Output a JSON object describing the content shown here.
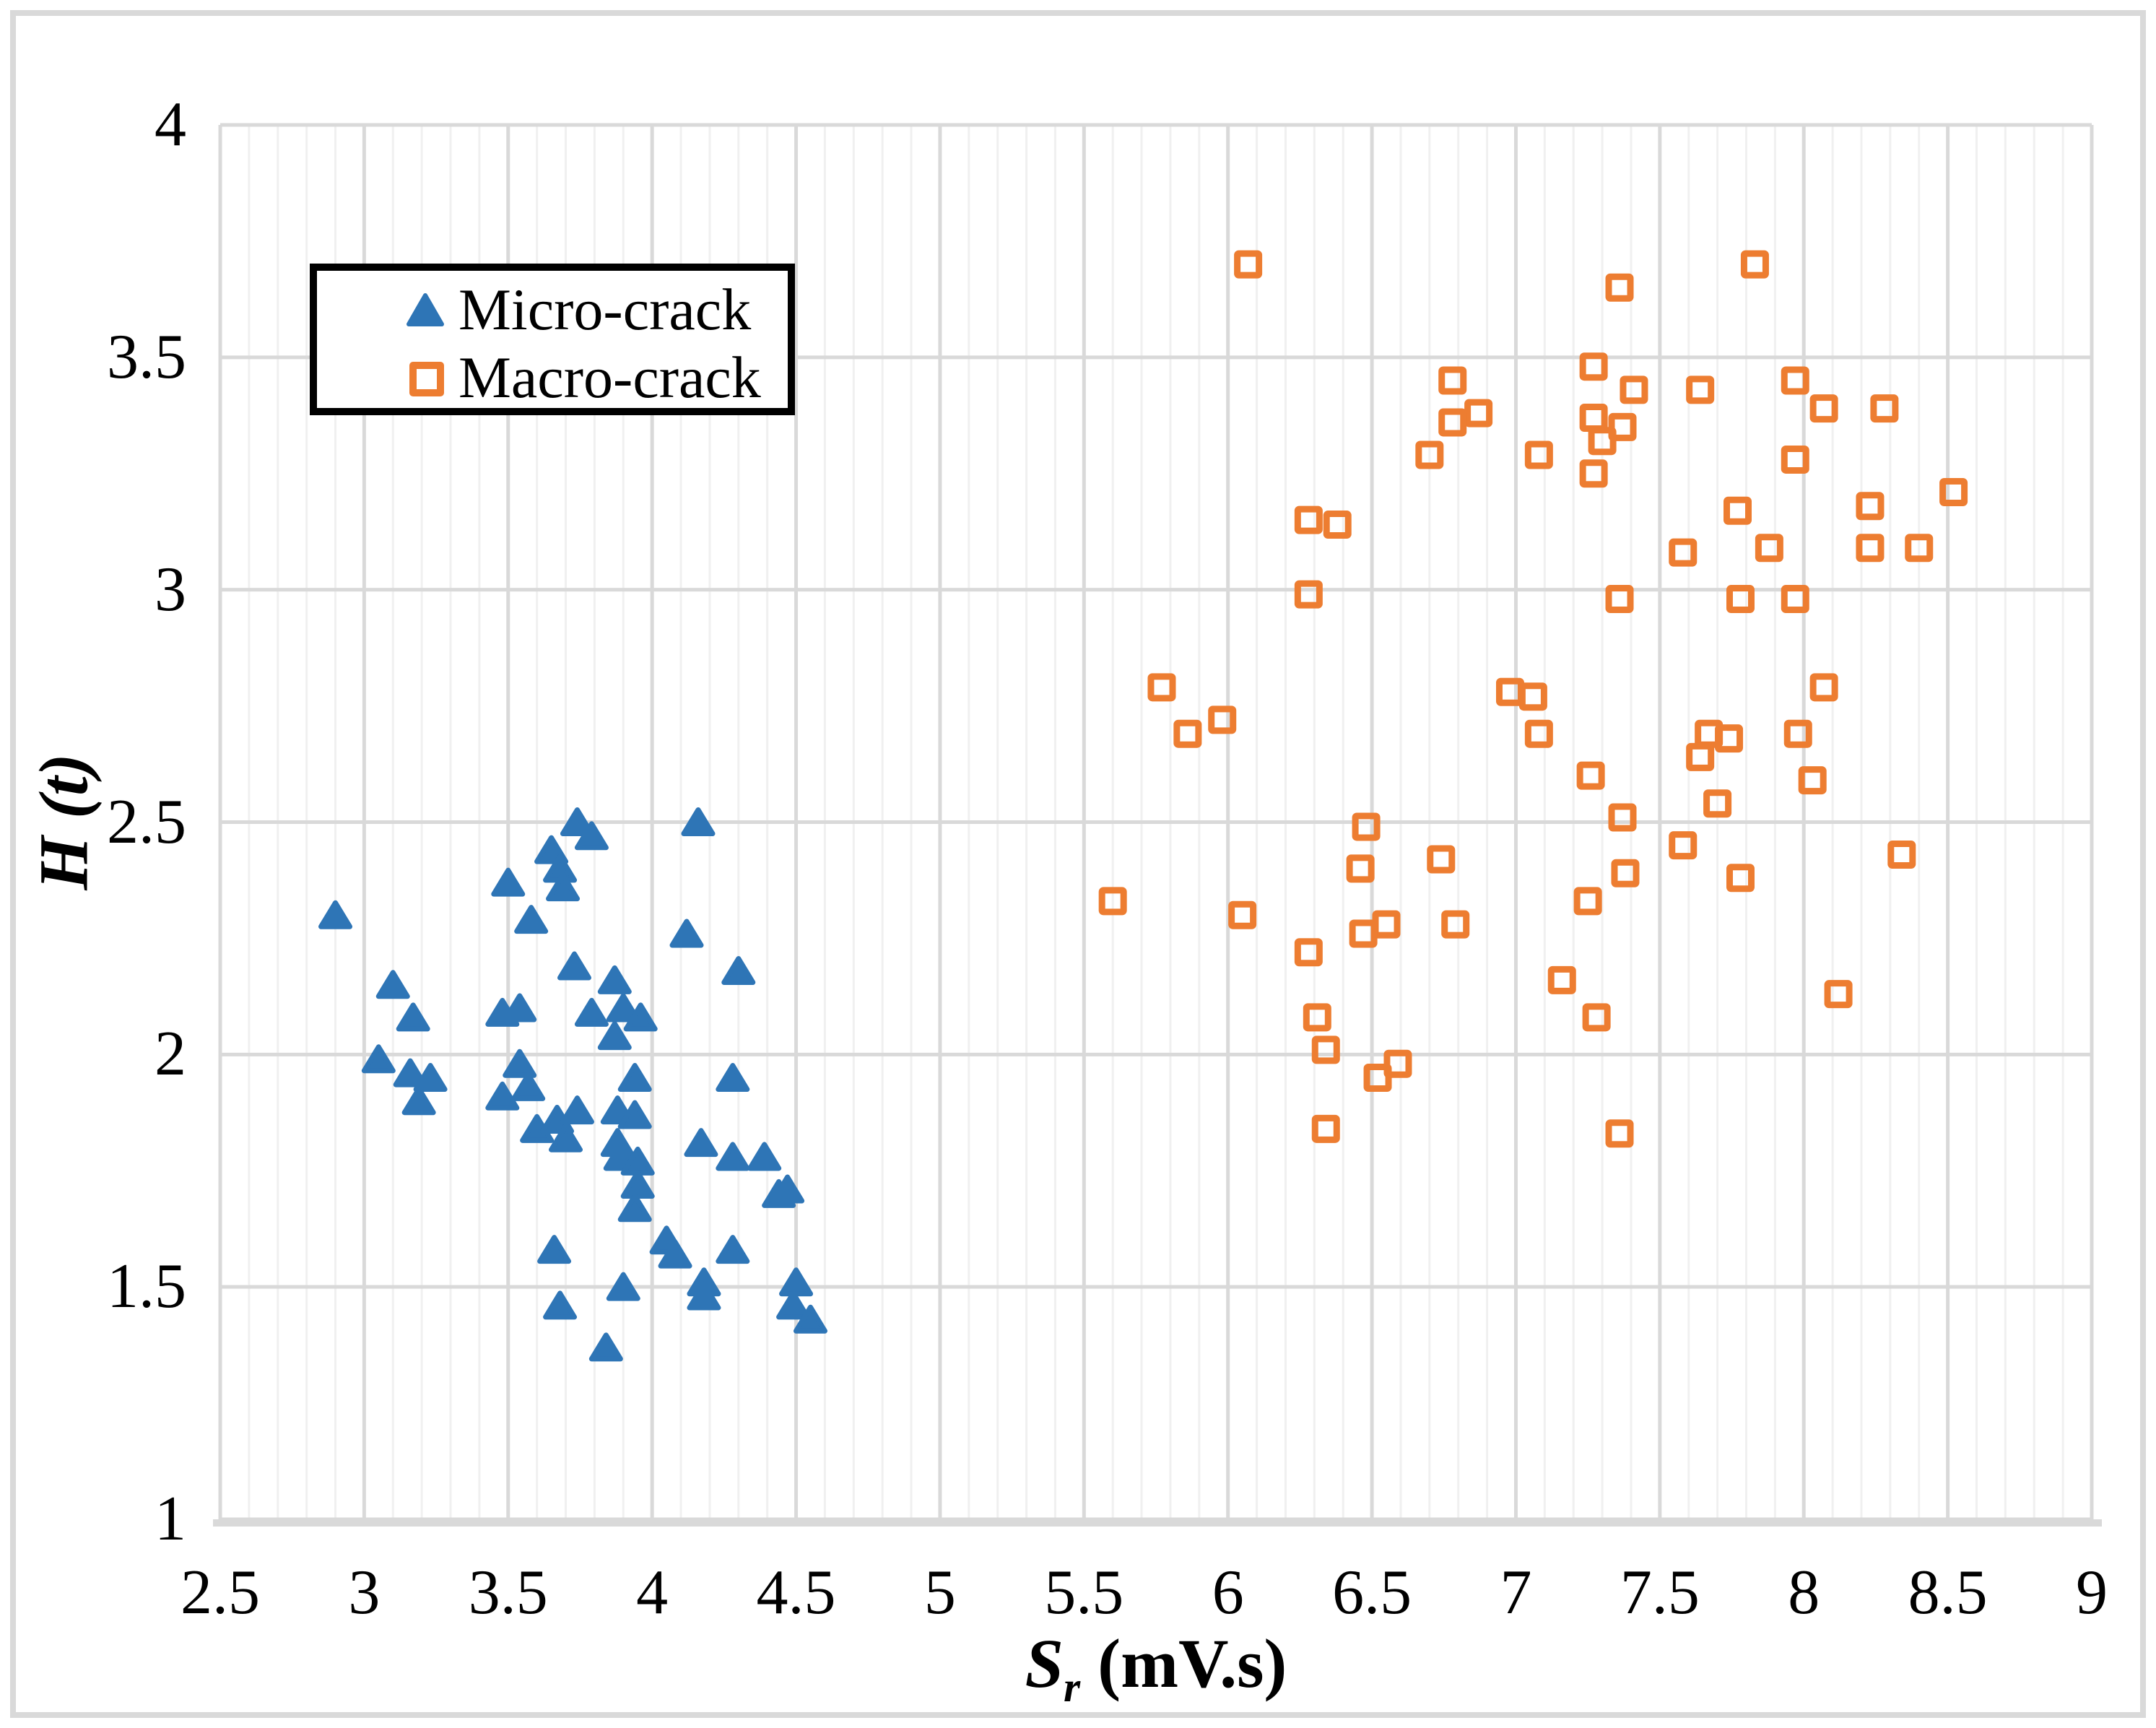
{
  "legend": {
    "items": [
      {
        "label": "Micro-crack",
        "marker": "triangle",
        "color": "#2E75B6"
      },
      {
        "label": "Macro-crack",
        "marker": "square",
        "color": "#ED7D31"
      }
    ]
  },
  "axes": {
    "x": {
      "label_symbol": "S",
      "label_subscript": "r",
      "label_unit": " (mV.s)",
      "min": 2.5,
      "max": 9,
      "major_step": 0.5,
      "minor_step": 0.1,
      "tick_labels": [
        "2.5",
        "3",
        "3.5",
        "4",
        "4.5",
        "5",
        "5.5",
        "6",
        "6.5",
        "7",
        "7.5",
        "8",
        "8.5",
        "9"
      ]
    },
    "y": {
      "label": "H (t)",
      "min": 1,
      "max": 4,
      "major_step": 0.5,
      "tick_labels": [
        "1",
        "1.5",
        "2",
        "2.5",
        "3",
        "3.5",
        "4"
      ]
    }
  },
  "colors": {
    "micro": "#2E75B6",
    "macro": "#ED7D31",
    "grid_major": "#d9d9d9",
    "grid_minor": "#f0f0f0",
    "axis_line": "#d9d9d9",
    "outer_border": "#d9d9d9",
    "legend_border": "#000000",
    "text": "#000000"
  },
  "chart_data": {
    "type": "scatter",
    "title": "",
    "xlabel": "Sr (mV.s)",
    "ylabel": "H (t)",
    "xlim": [
      2.5,
      9
    ],
    "ylim": [
      1,
      4
    ],
    "grid": {
      "x_major": true,
      "x_minor": true,
      "y_major": true,
      "y_minor": false
    },
    "legend_position": "top-left",
    "series": [
      {
        "name": "Micro-crack",
        "marker": "triangle",
        "color": "#2E75B6",
        "points": [
          [
            2.9,
            2.3
          ],
          [
            3.1,
            2.15
          ],
          [
            3.17,
            2.08
          ],
          [
            3.05,
            1.99
          ],
          [
            3.16,
            1.96
          ],
          [
            3.23,
            1.95
          ],
          [
            3.19,
            1.9
          ],
          [
            3.5,
            2.37
          ],
          [
            3.58,
            2.29
          ],
          [
            3.65,
            2.44
          ],
          [
            3.68,
            2.4
          ],
          [
            3.69,
            2.36
          ],
          [
            3.74,
            2.5
          ],
          [
            3.79,
            2.47
          ],
          [
            3.73,
            2.19
          ],
          [
            3.48,
            2.09
          ],
          [
            3.54,
            2.1
          ],
          [
            3.54,
            1.98
          ],
          [
            3.57,
            1.93
          ],
          [
            3.48,
            1.91
          ],
          [
            3.6,
            1.84
          ],
          [
            3.67,
            1.86
          ],
          [
            3.74,
            1.88
          ],
          [
            3.7,
            1.82
          ],
          [
            3.66,
            1.58
          ],
          [
            3.68,
            1.46
          ],
          [
            4.16,
            2.5
          ],
          [
            4.12,
            2.26
          ],
          [
            4.3,
            2.18
          ],
          [
            3.87,
            2.16
          ],
          [
            3.9,
            2.1
          ],
          [
            3.96,
            2.08
          ],
          [
            3.87,
            2.04
          ],
          [
            3.79,
            2.09
          ],
          [
            3.94,
            1.95
          ],
          [
            4.28,
            1.95
          ],
          [
            3.88,
            1.88
          ],
          [
            3.94,
            1.87
          ],
          [
            3.88,
            1.81
          ],
          [
            3.89,
            1.78
          ],
          [
            3.95,
            1.77
          ],
          [
            3.95,
            1.72
          ],
          [
            3.94,
            1.67
          ],
          [
            4.17,
            1.81
          ],
          [
            4.28,
            1.78
          ],
          [
            4.39,
            1.78
          ],
          [
            4.44,
            1.7
          ],
          [
            4.47,
            1.71
          ],
          [
            4.05,
            1.6
          ],
          [
            4.08,
            1.57
          ],
          [
            4.28,
            1.58
          ],
          [
            4.18,
            1.51
          ],
          [
            4.18,
            1.48
          ],
          [
            3.9,
            1.5
          ],
          [
            4.5,
            1.51
          ],
          [
            4.49,
            1.46
          ],
          [
            4.55,
            1.43
          ],
          [
            3.84,
            1.37
          ]
        ]
      },
      {
        "name": "Macro-crack",
        "marker": "square",
        "color": "#ED7D31",
        "points": [
          [
            6.07,
            3.7
          ],
          [
            7.83,
            3.7
          ],
          [
            7.36,
            3.65
          ],
          [
            7.27,
            3.48
          ],
          [
            6.78,
            3.45
          ],
          [
            7.97,
            3.45
          ],
          [
            7.41,
            3.43
          ],
          [
            7.64,
            3.43
          ],
          [
            8.07,
            3.39
          ],
          [
            8.28,
            3.39
          ],
          [
            6.87,
            3.38
          ],
          [
            7.27,
            3.37
          ],
          [
            6.78,
            3.36
          ],
          [
            7.37,
            3.35
          ],
          [
            7.3,
            3.32
          ],
          [
            6.7,
            3.29
          ],
          [
            7.08,
            3.29
          ],
          [
            7.97,
            3.28
          ],
          [
            7.27,
            3.25
          ],
          [
            8.52,
            3.21
          ],
          [
            8.23,
            3.18
          ],
          [
            7.77,
            3.17
          ],
          [
            6.28,
            3.15
          ],
          [
            6.38,
            3.14
          ],
          [
            8.23,
            3.09
          ],
          [
            8.4,
            3.09
          ],
          [
            7.88,
            3.09
          ],
          [
            7.58,
            3.08
          ],
          [
            6.28,
            2.99
          ],
          [
            7.36,
            2.98
          ],
          [
            7.78,
            2.98
          ],
          [
            7.97,
            2.98
          ],
          [
            5.77,
            2.79
          ],
          [
            8.07,
            2.79
          ],
          [
            6.98,
            2.78
          ],
          [
            7.06,
            2.77
          ],
          [
            5.98,
            2.72
          ],
          [
            5.86,
            2.69
          ],
          [
            7.08,
            2.69
          ],
          [
            7.67,
            2.69
          ],
          [
            7.98,
            2.69
          ],
          [
            7.74,
            2.68
          ],
          [
            7.64,
            2.64
          ],
          [
            7.26,
            2.6
          ],
          [
            8.03,
            2.59
          ],
          [
            7.7,
            2.54
          ],
          [
            7.37,
            2.51
          ],
          [
            6.48,
            2.49
          ],
          [
            7.58,
            2.45
          ],
          [
            8.34,
            2.43
          ],
          [
            6.74,
            2.42
          ],
          [
            6.46,
            2.4
          ],
          [
            7.38,
            2.39
          ],
          [
            7.78,
            2.38
          ],
          [
            5.6,
            2.33
          ],
          [
            7.25,
            2.33
          ],
          [
            6.05,
            2.3
          ],
          [
            6.55,
            2.28
          ],
          [
            6.79,
            2.28
          ],
          [
            6.47,
            2.26
          ],
          [
            6.28,
            2.22
          ],
          [
            7.16,
            2.16
          ],
          [
            8.12,
            2.13
          ],
          [
            6.31,
            2.08
          ],
          [
            7.28,
            2.08
          ],
          [
            6.34,
            2.01
          ],
          [
            6.52,
            1.95
          ],
          [
            6.59,
            1.98
          ],
          [
            6.34,
            1.84
          ],
          [
            7.36,
            1.83
          ]
        ]
      }
    ]
  }
}
